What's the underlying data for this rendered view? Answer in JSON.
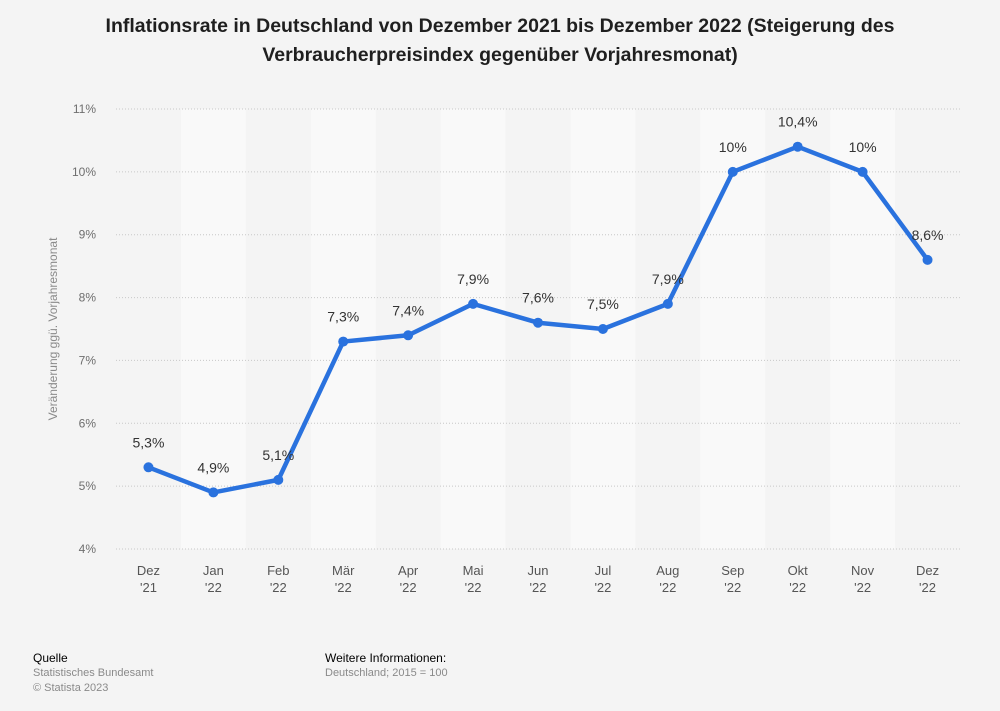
{
  "title": "Inflationsrate in Deutschland von Dezember 2021 bis Dezember 2022 (Steigerung des Verbraucherpreisindex gegenüber Vorjahresmonat)",
  "chart_data": {
    "type": "line",
    "title": "Inflationsrate in Deutschland von Dezember 2021 bis Dezember 2022 (Steigerung des Verbraucherpreisindex gegenüber Vorjahresmonat)",
    "ylabel": "Veränderung ggü. Vorjahresmonat",
    "xlabel": "",
    "ylim": [
      4,
      11
    ],
    "yticks": [
      4,
      5,
      6,
      7,
      8,
      9,
      10,
      11
    ],
    "ytick_labels": [
      "4%",
      "5%",
      "6%",
      "7%",
      "8%",
      "9%",
      "10%",
      "11%"
    ],
    "grid": true,
    "categories": [
      [
        "Dez",
        "'21"
      ],
      [
        "Jan",
        "'22"
      ],
      [
        "Feb",
        "'22"
      ],
      [
        "Mär",
        "'22"
      ],
      [
        "Apr",
        "'22"
      ],
      [
        "Mai",
        "'22"
      ],
      [
        "Jun",
        "'22"
      ],
      [
        "Jul",
        "'22"
      ],
      [
        "Aug",
        "'22"
      ],
      [
        "Sep",
        "'22"
      ],
      [
        "Okt",
        "'22"
      ],
      [
        "Nov",
        "'22"
      ],
      [
        "Dez",
        "'22"
      ]
    ],
    "values": [
      5.3,
      4.9,
      5.1,
      7.3,
      7.4,
      7.9,
      7.6,
      7.5,
      7.9,
      10.0,
      10.4,
      10.0,
      8.6
    ],
    "data_labels": [
      "5,3%",
      "4,9%",
      "5,1%",
      "7,3%",
      "7,4%",
      "7,9%",
      "7,6%",
      "7,5%",
      "7,9%",
      "10%",
      "10,4%",
      "10%",
      "8,6%"
    ],
    "line_color": "#2a72de",
    "band_color": "#f9f9f9"
  },
  "footer": {
    "source_heading": "Quelle",
    "source_name": "Statistisches Bundesamt",
    "copyright": "© Statista 2023",
    "info_heading": "Weitere Informationen:",
    "info_text": "Deutschland; 2015 = 100"
  }
}
